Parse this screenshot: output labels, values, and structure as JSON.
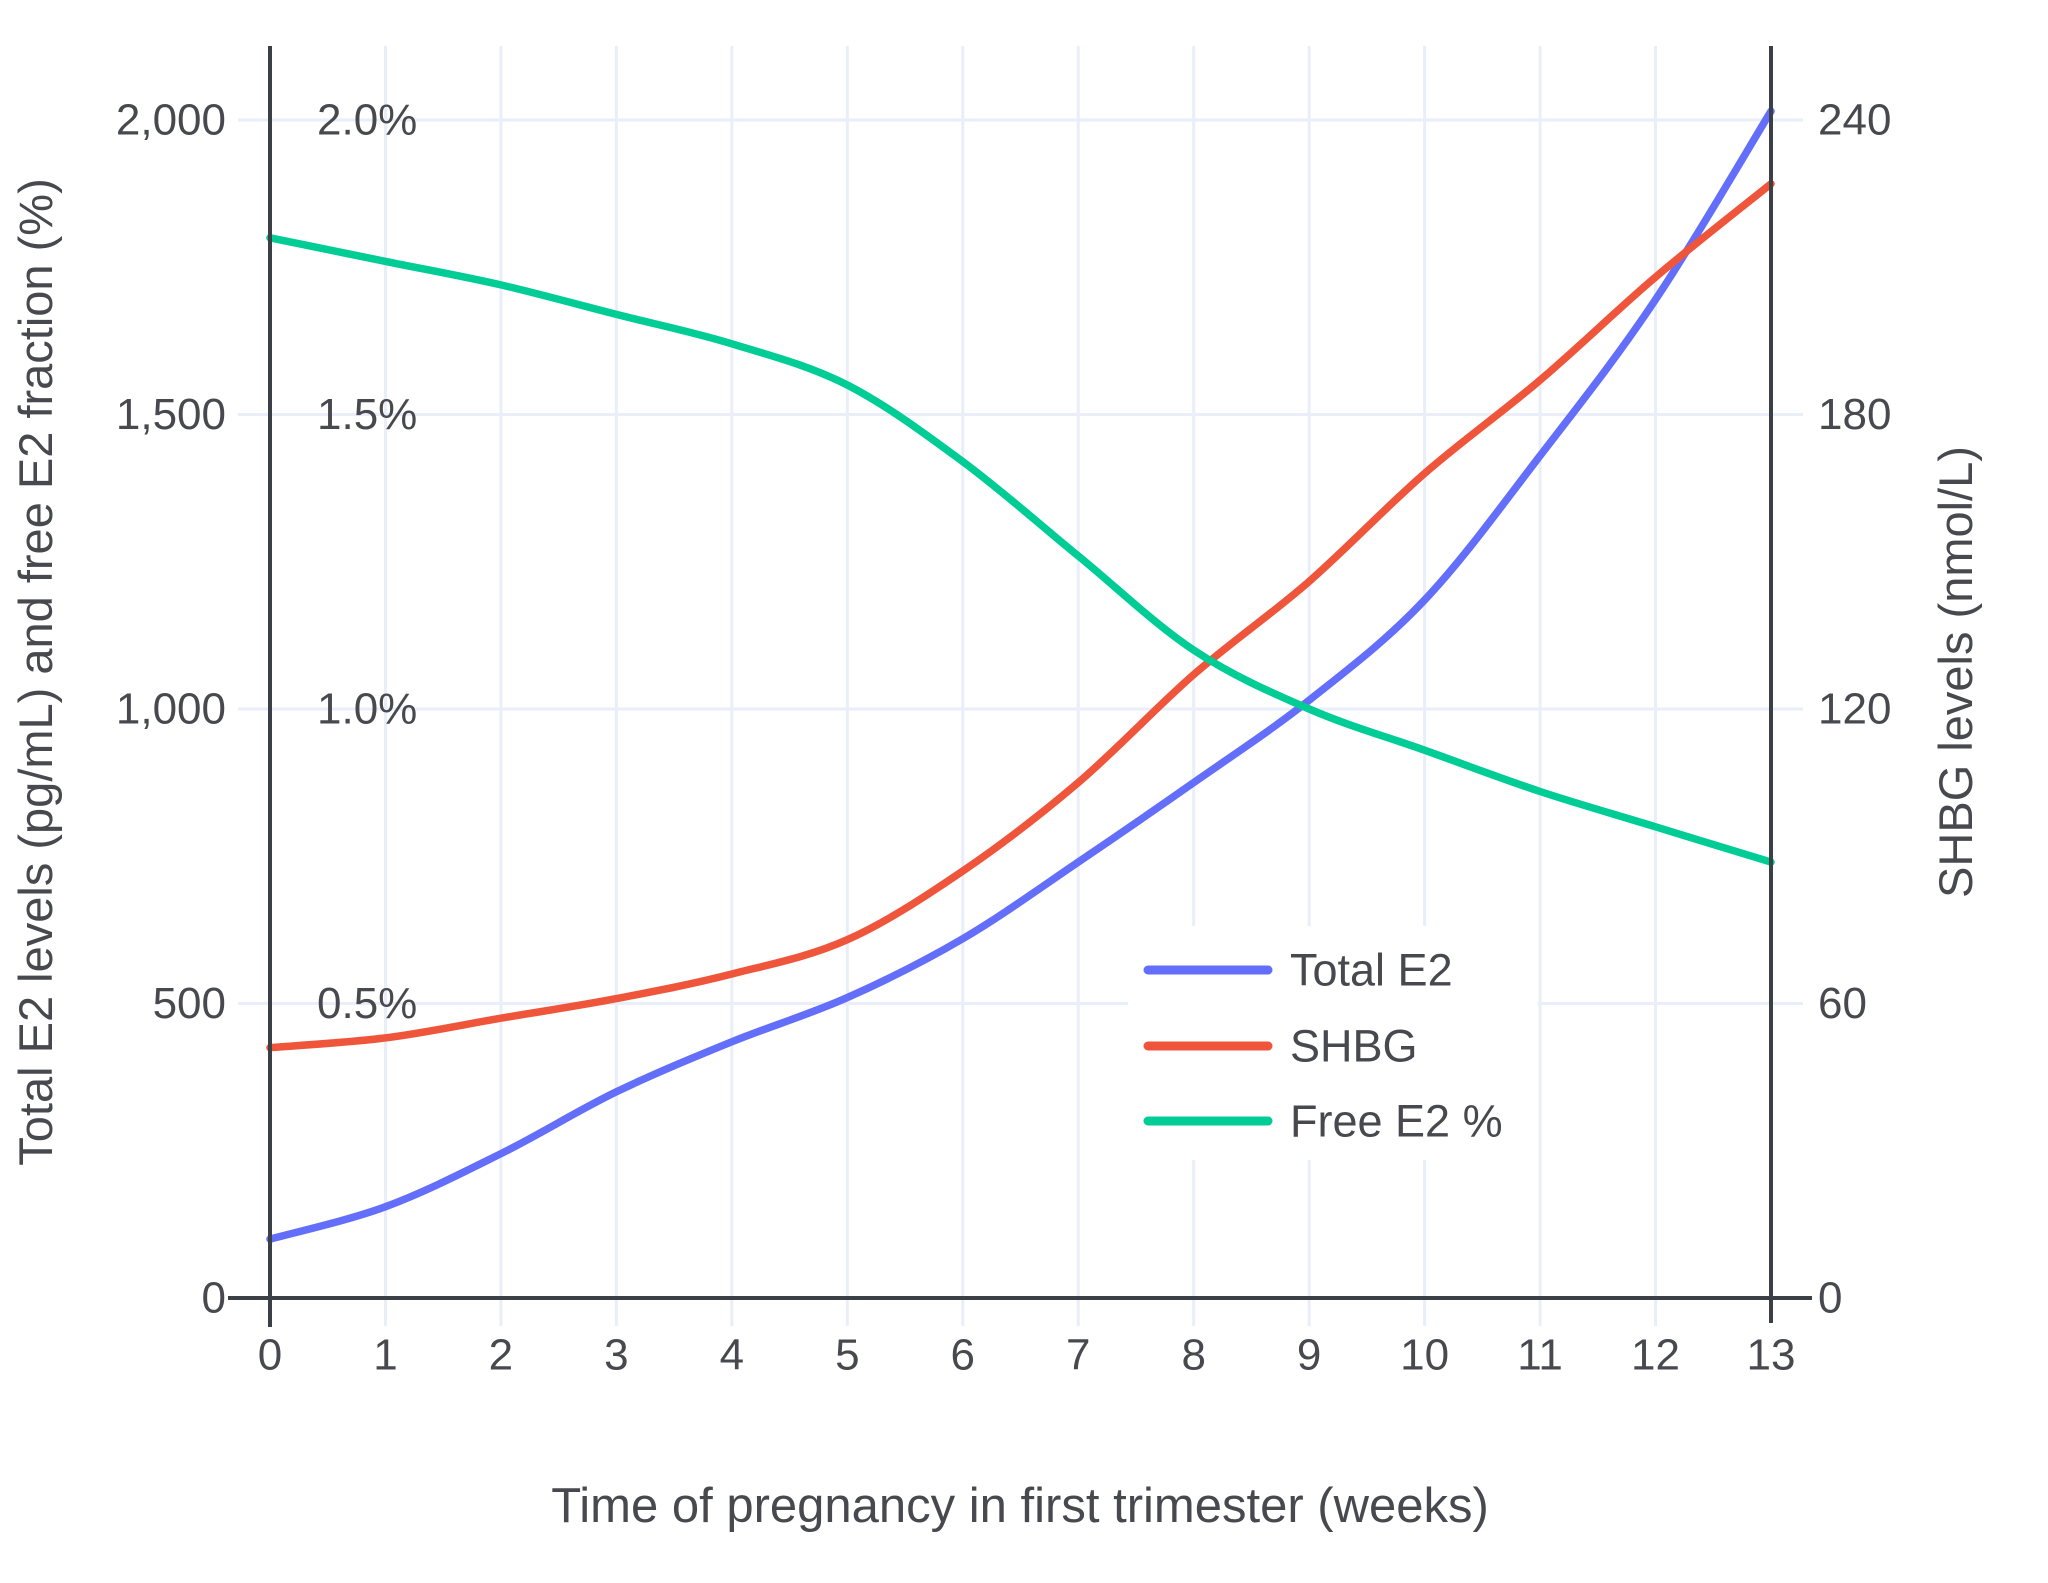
{
  "figure": {
    "background": "#ffffff",
    "text_color": "#47494e",
    "axis_color": "#3b3f46",
    "grid_color": "#e9eef8"
  },
  "x_axis": {
    "title": "Time of pregnancy in first trimester (weeks)",
    "ticks": [
      "0",
      "1",
      "2",
      "3",
      "4",
      "5",
      "6",
      "7",
      "8",
      "9",
      "10",
      "11",
      "12",
      "13"
    ]
  },
  "left_axis": {
    "title": "Total E2 levels (pg/mL) and free E2 fraction (%)",
    "ticks": [
      {
        "label": "0",
        "value": 0
      },
      {
        "label": "500",
        "value": 500
      },
      {
        "label": "1,000",
        "value": 1000
      },
      {
        "label": "1,500",
        "value": 1500
      },
      {
        "label": "2,000",
        "value": 2000
      }
    ],
    "pct_labels": [
      {
        "label": "0.5%",
        "value": 500
      },
      {
        "label": "1.0%",
        "value": 1000
      },
      {
        "label": "1.5%",
        "value": 1500
      },
      {
        "label": "2.0%",
        "value": 2000
      }
    ]
  },
  "right_axis": {
    "title": "SHBG levels (nmol/L)",
    "ticks": [
      {
        "label": "0",
        "value": 0
      },
      {
        "label": "60",
        "value": 60
      },
      {
        "label": "120",
        "value": 120
      },
      {
        "label": "180",
        "value": 180
      },
      {
        "label": "240",
        "value": 240
      }
    ]
  },
  "legend": {
    "items": [
      {
        "label": "Total E2",
        "color": "#636efa"
      },
      {
        "label": "SHBG",
        "color": "#ef553b"
      },
      {
        "label": "Free E2 %",
        "color": "#00cc96"
      }
    ]
  },
  "chart_data": {
    "type": "line",
    "title": "",
    "xlabel": "Time of pregnancy in first trimester (weeks)",
    "ylabel_left": "Total E2 levels (pg/mL) and free E2 fraction (%)",
    "ylabel_right": "SHBG levels (nmol/L)",
    "x": [
      0,
      1,
      2,
      3,
      4,
      5,
      6,
      7,
      8,
      9,
      10,
      11,
      12,
      13
    ],
    "xlim": [
      0,
      13
    ],
    "ylim_left": [
      0,
      2100
    ],
    "ylim_right": [
      0,
      252
    ],
    "ylim_pct": [
      0,
      2.1
    ],
    "grid": true,
    "legend_position": "inside-right-middle",
    "series": [
      {
        "name": "Total E2",
        "axis": "left",
        "units": "pg/mL",
        "color": "#636efa",
        "values": [
          100,
          155,
          245,
          350,
          435,
          510,
          610,
          740,
          875,
          1015,
          1185,
          1430,
          1695,
          2015
        ]
      },
      {
        "name": "SHBG",
        "axis": "right",
        "units": "nmol/L",
        "color": "#ef553b",
        "values": [
          51,
          53,
          57,
          61,
          66,
          73,
          87,
          105,
          127,
          146,
          168,
          187,
          208,
          227
        ]
      },
      {
        "name": "Free E2 %",
        "axis": "pct",
        "units": "%",
        "color": "#00cc96",
        "values": [
          1.8,
          1.76,
          1.72,
          1.67,
          1.62,
          1.55,
          1.42,
          1.26,
          1.1,
          1.0,
          0.93,
          0.86,
          0.8,
          0.74
        ]
      }
    ]
  }
}
